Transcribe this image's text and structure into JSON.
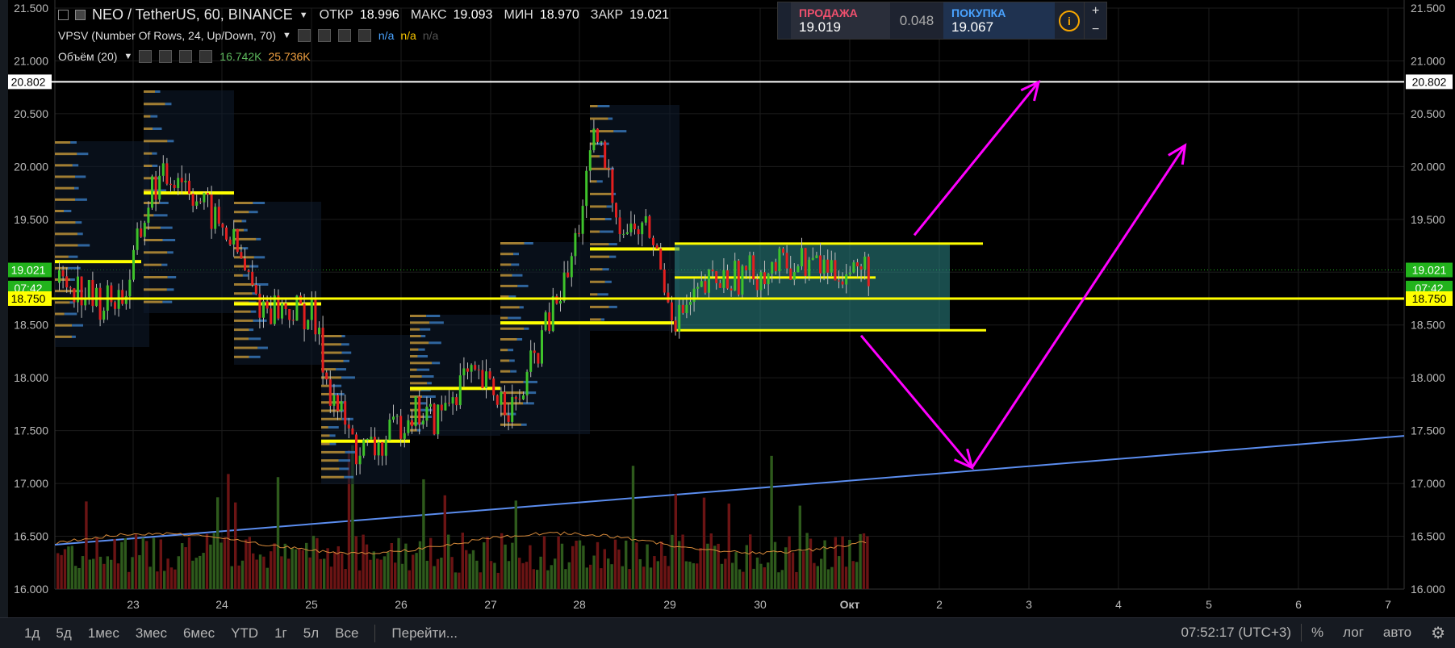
{
  "header": {
    "symbol": "NEO / TetherUS, 60, BINANCE",
    "open_label": "ОТКР",
    "open": "18.996",
    "high_label": "МАКС",
    "high": "19.093",
    "low_label": "МИН",
    "low": "18.970",
    "close_label": "ЗАКР",
    "close": "19.021"
  },
  "indicators": [
    {
      "name": "VPSV (Number Of Rows, 24, Up/Down, 70)",
      "v1": "n/a",
      "v2": "n/a",
      "v3": "n/a"
    },
    {
      "name": "Объём (20)",
      "v1": "16.742K",
      "v2": "25.736K"
    }
  ],
  "trade": {
    "sell_label": "ПРОДАЖА",
    "sell_price": "19.019",
    "spread": "0.048",
    "buy_label": "ПОКУПКА",
    "buy_price": "19.067",
    "info_icon": "i",
    "plus": "+",
    "minus": "−"
  },
  "bottom_bar": {
    "periods": [
      "1д",
      "5д",
      "1мес",
      "3мес",
      "6мес",
      "YTD",
      "1г",
      "5л",
      "Все"
    ],
    "goto": "Перейти...",
    "time": "07:52:17 (UTC+3)",
    "percent": "%",
    "log": "лог",
    "auto": "авто"
  },
  "chart_data": {
    "type": "line",
    "y_ticks": [
      "21.500",
      "21.000",
      "20.500",
      "20.000",
      "19.500",
      "19.000",
      "18.500",
      "18.000",
      "17.500",
      "17.000",
      "16.500",
      "16.000"
    ],
    "x_ticks": [
      "23",
      "24",
      "25",
      "26",
      "27",
      "28",
      "29",
      "30",
      "Окт",
      "2",
      "3",
      "4",
      "5",
      "6",
      "7"
    ],
    "ylim": [
      16.0,
      21.5
    ],
    "price_labels": [
      {
        "value": 20.802,
        "text": "20.802",
        "bg": "#ffffff",
        "fg": "#000000"
      },
      {
        "value": 19.021,
        "text": "19.021",
        "bg": "#22b31c",
        "fg": "#ffffff"
      },
      {
        "value": 18.85,
        "text": "07:42",
        "bg": "#22b31c",
        "fg": "#ffffff"
      },
      {
        "value": 18.75,
        "text": "18.750",
        "bg": "#ffff00",
        "fg": "#000000"
      }
    ],
    "horizontal_lines": [
      {
        "name": "resistance",
        "value": 20.802,
        "color": "#ffffff"
      },
      {
        "name": "support",
        "value": 18.75,
        "color": "#ffff00"
      }
    ],
    "trendline": {
      "color": "#5b8def",
      "from": {
        "x": "22.2",
        "y": 16.42
      },
      "to": {
        "x": "7.2",
        "y": 17.45
      }
    },
    "range_box": {
      "from_x": "29.1",
      "to_x": "2.2",
      "top": 19.27,
      "bottom": 18.45,
      "color": "#2e8b8b"
    },
    "close_series": [
      {
        "x": "22.3",
        "y": 18.9
      },
      {
        "x": "22.6",
        "y": 18.7
      },
      {
        "x": "22.9",
        "y": 18.8
      },
      {
        "x": "23.2",
        "y": 19.8
      },
      {
        "x": "23.5",
        "y": 19.95
      },
      {
        "x": "23.8",
        "y": 19.6
      },
      {
        "x": "24.1",
        "y": 19.3
      },
      {
        "x": "24.4",
        "y": 18.7
      },
      {
        "x": "24.7",
        "y": 18.65
      },
      {
        "x": "25.0",
        "y": 18.6
      },
      {
        "x": "25.2",
        "y": 17.9
      },
      {
        "x": "25.5",
        "y": 17.3
      },
      {
        "x": "25.8",
        "y": 17.35
      },
      {
        "x": "26.1",
        "y": 17.7
      },
      {
        "x": "26.4",
        "y": 17.6
      },
      {
        "x": "26.7",
        "y": 18.0
      },
      {
        "x": "27.0",
        "y": 17.9
      },
      {
        "x": "27.3",
        "y": 17.7
      },
      {
        "x": "27.6",
        "y": 18.4
      },
      {
        "x": "27.9",
        "y": 19.0
      },
      {
        "x": "28.2",
        "y": 20.3
      },
      {
        "x": "28.5",
        "y": 19.4
      },
      {
        "x": "28.8",
        "y": 19.4
      },
      {
        "x": "29.1",
        "y": 18.55
      },
      {
        "x": "29.5",
        "y": 18.9
      },
      {
        "x": "30.0",
        "y": 19.0
      },
      {
        "x": "30.5",
        "y": 19.1
      },
      {
        "x": "Окт",
        "y": 19.0
      },
      {
        "x": "1.2",
        "y": 19.021
      }
    ],
    "projection_arrows": [
      {
        "from": {
          "x": "1.8",
          "y": 19.35
        },
        "to": {
          "x": "3.2",
          "y": 20.8
        }
      },
      {
        "from": {
          "x": "1.2",
          "y": 18.4
        },
        "to": {
          "x": "2.45",
          "y": 17.15
        }
      },
      {
        "from": {
          "x": "2.45",
          "y": 17.15
        },
        "to": {
          "x": "4.85",
          "y": 20.2
        }
      }
    ],
    "volume_avg_label": "Объём (20)"
  }
}
